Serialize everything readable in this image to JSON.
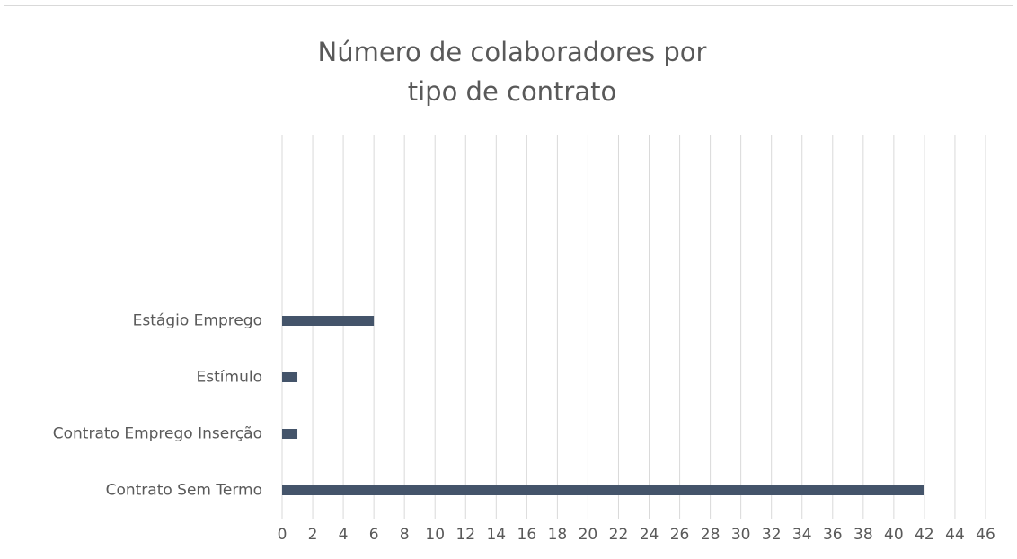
{
  "chart_data": {
    "type": "bar",
    "orientation": "horizontal",
    "title": "Número de colaboradores por tipo de contrato",
    "categories": [
      "Contrato Sem Termo",
      "Contrato Emprego Inserção",
      "Estímulo",
      "Estágio Emprego",
      null,
      null,
      null
    ],
    "values": [
      42,
      1,
      1,
      6,
      null,
      null,
      null
    ],
    "color": "#44546a",
    "xlim": [
      0,
      46
    ],
    "xticks": [
      0,
      2,
      4,
      6,
      8,
      10,
      12,
      14,
      16,
      18,
      20,
      22,
      24,
      26,
      28,
      30,
      32,
      34,
      36,
      38,
      40,
      42,
      44,
      46
    ],
    "grid": true
  }
}
